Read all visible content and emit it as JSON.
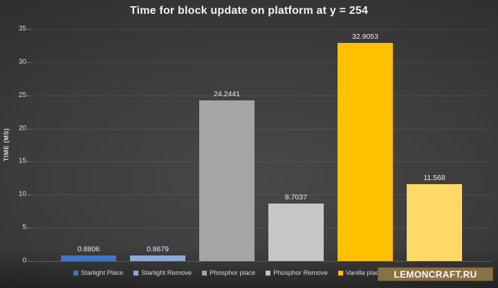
{
  "title": "Time for block update on platform at y = 254",
  "watermark": "LEMONCRAFT.RU",
  "colors": {
    "background_dark": "#1a1a1a",
    "background_light": "#484848",
    "text_primary": "#f2f2f2",
    "text_secondary": "#d9d9d9",
    "gridline": "rgba(255,255,255,0.09)",
    "axis_line": "#606060",
    "watermark_bg": "#8a7045"
  },
  "chart_data": {
    "type": "bar",
    "title": "Time for block update on platform at y = 254",
    "xlabel": "",
    "ylabel": "TIME (MS)",
    "ylim": [
      0,
      35
    ],
    "yticks": [
      0,
      5,
      10,
      15,
      20,
      25,
      30,
      35
    ],
    "grid": true,
    "legend_position": "bottom",
    "categories": [
      "Starlight Place",
      "Starlight Remove",
      "Phosphor place",
      "Phosphor Remove",
      "Vanilla place",
      ""
    ],
    "values": [
      0.8806,
      0.8679,
      24.2441,
      8.7037,
      32.9053,
      11.568
    ],
    "data_labels": [
      "0.8806",
      "0.8679",
      "24.2441",
      "8.7037",
      "32.9053",
      "11.568"
    ],
    "bar_colors": [
      "#4472C4",
      "#8FAADC",
      "#A5A5A5",
      "#C6C6C6",
      "#FFC000",
      "#FFD966"
    ]
  },
  "legend": {
    "items": [
      {
        "label": "Starlight Place",
        "color": "#4472C4"
      },
      {
        "label": "Starlight Remove",
        "color": "#8FAADC"
      },
      {
        "label": "Phosphor place",
        "color": "#A5A5A5"
      },
      {
        "label": "Phosphor Remove",
        "color": "#C6C6C6"
      },
      {
        "label": "Vanilla place",
        "color": "#FFC000"
      },
      {
        "label": "",
        "color": "#FFD966"
      }
    ]
  }
}
